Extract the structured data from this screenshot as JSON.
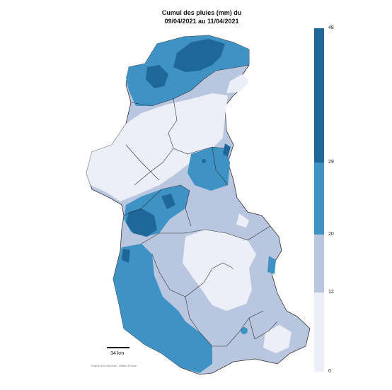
{
  "title": {
    "line1": "Cumul des pluies (mm) du",
    "line2": "09/04/2021 au 11/04/2021"
  },
  "legend": {
    "ticks": [
      "48",
      "29",
      "20",
      "12",
      "0"
    ],
    "colors": [
      "#1f6799",
      "#3e92c4",
      "#b8c6df",
      "#eceff7"
    ]
  },
  "scale": {
    "label": "34 km"
  },
  "source": "Origine des données : Météo-France",
  "map_colors": {
    "very_light": "#eceff7",
    "light": "#b8c6df",
    "medium": "#3e92c4",
    "dark": "#1f6799",
    "border": "#333333"
  }
}
